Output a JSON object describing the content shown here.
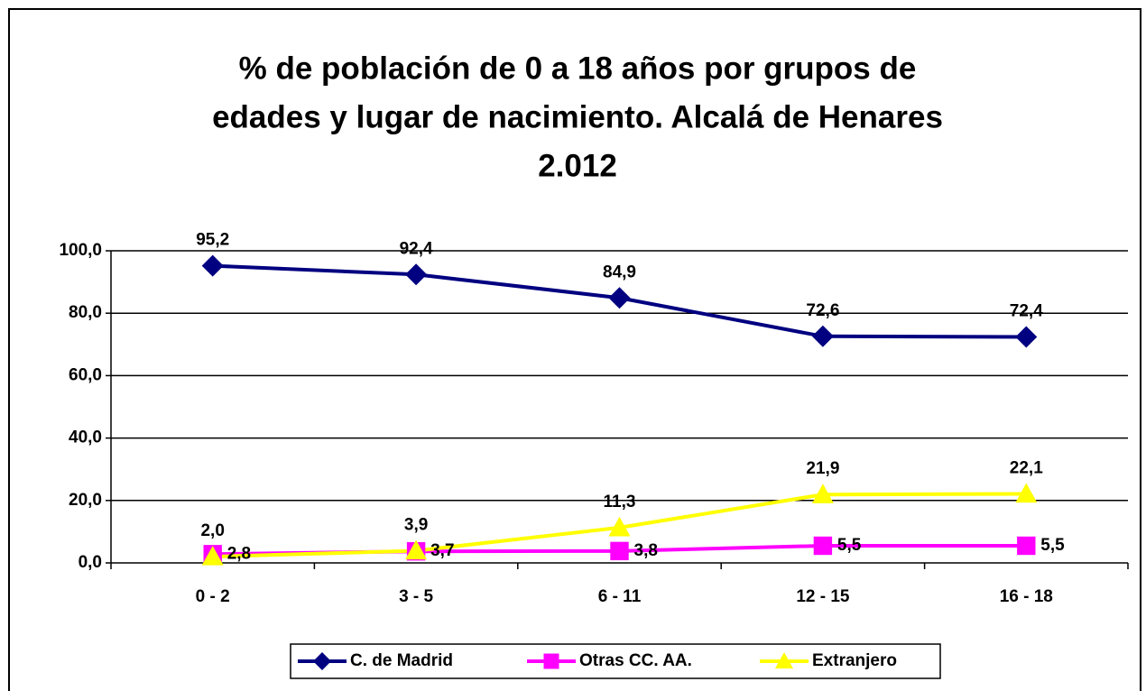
{
  "chart_data": {
    "type": "line",
    "title": [
      "% de población de 0 a 18 años por grupos de",
      "edades y lugar de nacimiento. Alcalá de Henares",
      "2.012"
    ],
    "categories": [
      "0 - 2",
      "3 - 5",
      "6 - 11",
      "12 - 15",
      "16 - 18"
    ],
    "series": [
      {
        "name": "C. de Madrid",
        "color": "#000080",
        "marker": "diamond",
        "values": [
          95.2,
          92.4,
          84.9,
          72.6,
          72.4
        ],
        "value_labels": [
          "95,2",
          "92,4",
          "84,9",
          "72,6",
          "72,4"
        ]
      },
      {
        "name": "Otras CC. AA.",
        "color": "#ff00ff",
        "marker": "square",
        "values": [
          2.8,
          3.7,
          3.8,
          5.5,
          5.5
        ],
        "value_labels": [
          "2,8",
          "3,7",
          "3,8",
          "5,5",
          "5,5"
        ]
      },
      {
        "name": "Extranjero",
        "color": "#ffff00",
        "marker": "triangle",
        "values": [
          2.0,
          3.9,
          11.3,
          21.9,
          22.1
        ],
        "value_labels": [
          "2,0",
          "3,9",
          "11,3",
          "21,9",
          "22,1"
        ]
      }
    ],
    "ylim": [
      0,
      100
    ],
    "yticks": [
      {
        "value": 0,
        "label": "0,0"
      },
      {
        "value": 20,
        "label": "20,0"
      },
      {
        "value": 40,
        "label": "40,0"
      },
      {
        "value": 60,
        "label": "60,0"
      },
      {
        "value": 80,
        "label": "80,0"
      },
      {
        "value": 100,
        "label": "100,0"
      }
    ],
    "grid": true,
    "legend": "bottom"
  }
}
